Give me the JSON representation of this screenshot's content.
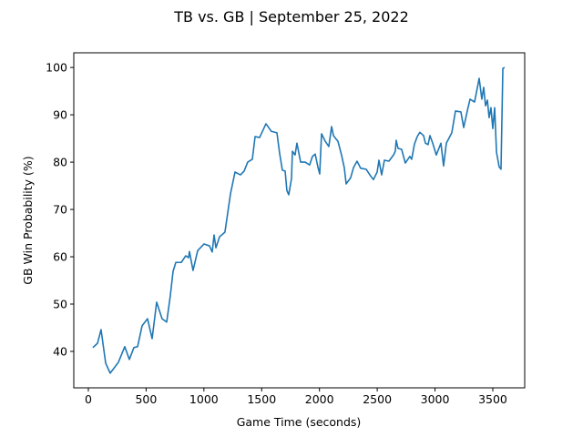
{
  "chart_data": {
    "type": "line",
    "title": "TB vs. GB | September 25, 2022",
    "x_label": "Game Time (seconds)",
    "y_label": "GB Win Probability (%)",
    "x": [
      39,
      79,
      110,
      150,
      189,
      260,
      315,
      355,
      394,
      426,
      465,
      512,
      552,
      591,
      638,
      678,
      709,
      733,
      757,
      804,
      843,
      867,
      875,
      906,
      946,
      1001,
      1048,
      1072,
      1088,
      1104,
      1135,
      1182,
      1230,
      1269,
      1316,
      1348,
      1379,
      1419,
      1443,
      1482,
      1537,
      1584,
      1632,
      1655,
      1679,
      1703,
      1718,
      1734,
      1758,
      1766,
      1789,
      1805,
      1837,
      1876,
      1915,
      1939,
      1963,
      1986,
      2002,
      2018,
      2050,
      2081,
      2105,
      2121,
      2160,
      2191,
      2215,
      2231,
      2270,
      2294,
      2325,
      2357,
      2404,
      2436,
      2467,
      2499,
      2515,
      2538,
      2562,
      2601,
      2641,
      2656,
      2664,
      2680,
      2711,
      2743,
      2782,
      2798,
      2822,
      2846,
      2869,
      2901,
      2917,
      2940,
      2956,
      2980,
      3011,
      3051,
      3074,
      3098,
      3145,
      3177,
      3224,
      3248,
      3279,
      3303,
      3342,
      3382,
      3405,
      3421,
      3437,
      3453,
      3468,
      3484,
      3500,
      3516,
      3532,
      3555,
      3571,
      3587,
      3602
    ],
    "series": [
      {
        "name": "GB Win Probability",
        "color": "#1f77b4",
        "values": [
          40.8,
          41.7,
          44.6,
          37.5,
          35.4,
          37.7,
          41,
          38.3,
          40.8,
          41,
          45.4,
          46.9,
          42.7,
          50.4,
          46.9,
          46.2,
          51.7,
          56.9,
          58.8,
          58.8,
          60.2,
          59.8,
          61.1,
          57.1,
          61.3,
          62.7,
          62.3,
          61,
          64.6,
          61.9,
          64.2,
          65.2,
          73.3,
          77.9,
          77.3,
          78.1,
          80,
          80.6,
          85.4,
          85.2,
          88.1,
          86.5,
          86.2,
          81.9,
          78.3,
          78.1,
          74,
          73.1,
          76.5,
          82.3,
          81.5,
          84,
          80,
          80,
          79.4,
          81.2,
          81.7,
          79,
          77.5,
          86,
          84.4,
          83.3,
          87.5,
          85.6,
          84.4,
          81.5,
          78.8,
          75.4,
          76.7,
          78.8,
          80.2,
          78.7,
          78.5,
          77.3,
          76.3,
          77.9,
          80.4,
          77.3,
          80.4,
          80.2,
          81.5,
          82.3,
          84.6,
          82.9,
          82.7,
          79.8,
          81.2,
          80.6,
          83.8,
          85.4,
          86.3,
          85.6,
          84,
          83.7,
          85.6,
          84,
          81.5,
          84,
          79.2,
          84,
          86.2,
          90.8,
          90.6,
          87.3,
          90.8,
          93.3,
          92.7,
          97.7,
          93.3,
          95.8,
          91.9,
          93.1,
          89.4,
          91.5,
          87.1,
          91.5,
          82.1,
          79,
          78.5,
          99.8,
          100
        ]
      }
    ],
    "xlim": [
      -126,
      3776
    ],
    "ylim": [
      32.3,
      103.1
    ],
    "xticks": [
      0,
      500,
      1000,
      1500,
      2000,
      2500,
      3000,
      3500
    ],
    "yticks": [
      40,
      50,
      60,
      70,
      80,
      90,
      100
    ]
  }
}
